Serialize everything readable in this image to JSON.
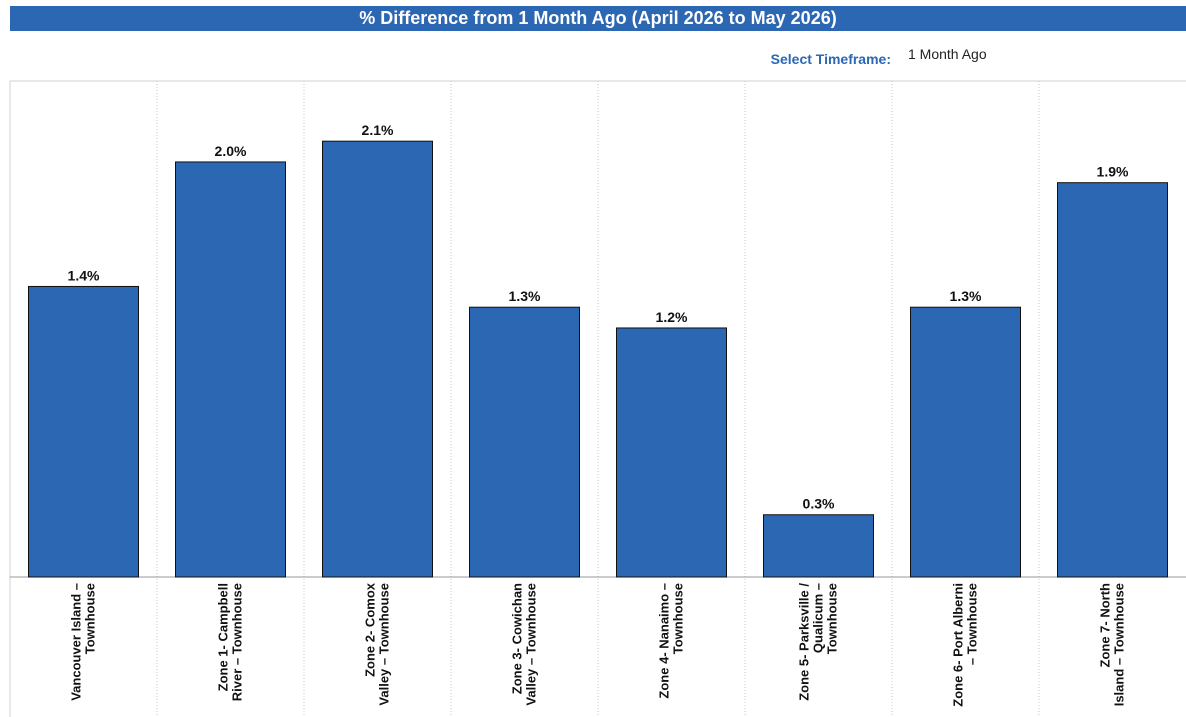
{
  "header": {
    "title": "% Difference from 1 Month Ago (April 2026 to May 2026)"
  },
  "controls": {
    "timeframe_label": "Select Timeframe:",
    "timeframe_value": "1 Month Ago"
  },
  "colors": {
    "bar": "#2b67b3",
    "title_bg": "#2b67b3"
  },
  "chart_data": {
    "type": "bar",
    "categories": [
      [
        "Vancouver Island –",
        "Townhouse"
      ],
      [
        "Zone 1- Campbell",
        "River – Townhouse"
      ],
      [
        "Zone 2- Comox",
        "Valley – Townhouse"
      ],
      [
        "Zone 3- Cowichan",
        "Valley – Townhouse"
      ],
      [
        "Zone 4- Nanaimo –",
        "Townhouse"
      ],
      [
        "Zone 5- Parksville /",
        "Qualicum –",
        "Townhouse"
      ],
      [
        "Zone 6- Port Alberni",
        "– Townhouse"
      ],
      [
        "Zone 7- North",
        "Island – Townhouse"
      ]
    ],
    "values": [
      1.4,
      2.0,
      2.1,
      1.3,
      1.2,
      0.3,
      1.3,
      1.9
    ],
    "value_labels": [
      "1.4%",
      "2.0%",
      "2.1%",
      "1.3%",
      "1.2%",
      "0.3%",
      "1.3%",
      "1.9%"
    ],
    "ylim": [
      0,
      2.39
    ],
    "grid": "vertical dotted separators",
    "legend": "none"
  }
}
